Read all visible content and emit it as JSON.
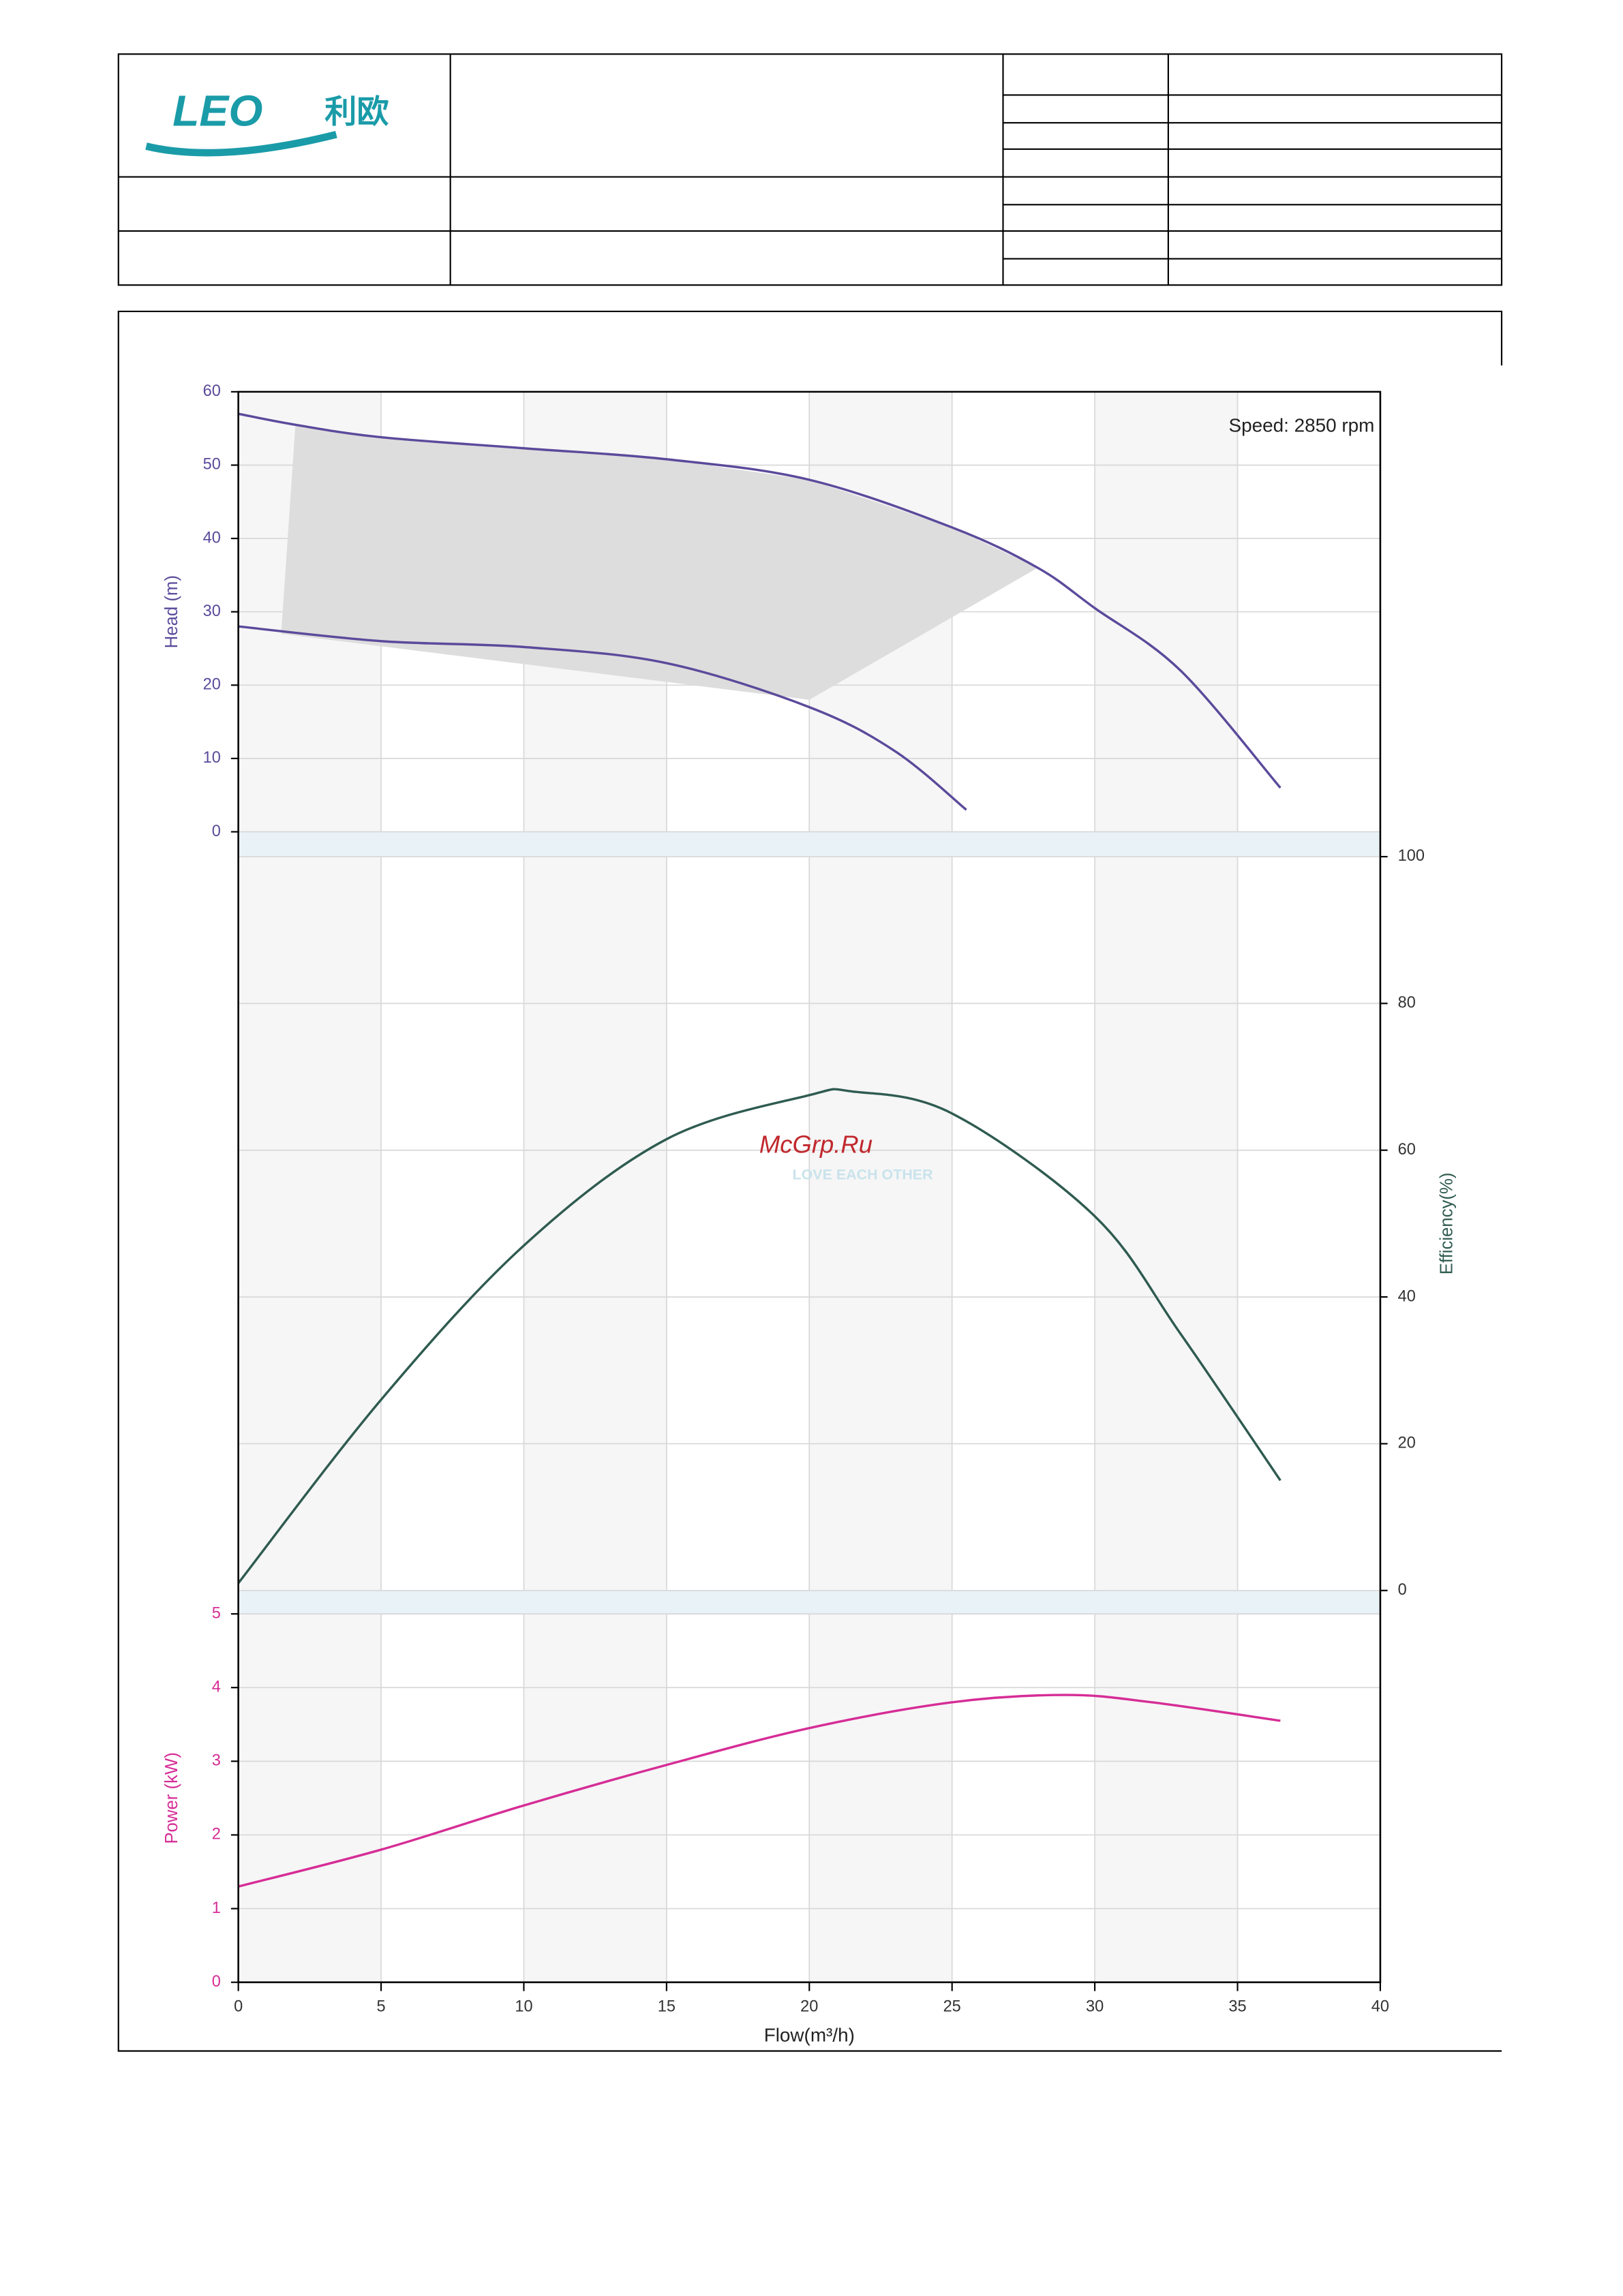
{
  "header": {
    "logo_en": "LEO",
    "logo_cn": "利欧"
  },
  "watermark": {
    "text": "McGrp.Ru",
    "slogan": "LOVE EACH OTHER"
  },
  "chart_data": [
    {
      "type": "line",
      "ylabel": "Head (m)",
      "annotation": "Speed: 2850 rpm",
      "xlim": [
        0,
        40
      ],
      "ylim": [
        0,
        60
      ],
      "yticks": [
        0,
        10,
        20,
        30,
        40,
        50,
        60
      ],
      "grid": true,
      "color": "#5b4a9b",
      "series": [
        {
          "color": "#5b4a9b",
          "x": [
            0,
            2,
            5,
            10,
            15,
            20,
            25,
            28,
            30,
            33,
            36.5
          ],
          "values": [
            57,
            55.5,
            53.8,
            52.3,
            50.8,
            48,
            41.5,
            36,
            30.5,
            22,
            6
          ]
        },
        {
          "color": "#5b4a9b",
          "x": [
            0,
            5,
            10,
            15,
            20,
            23,
            25.5
          ],
          "values": [
            28,
            26,
            25.2,
            23,
            17,
            11,
            3
          ]
        }
      ],
      "region": {
        "color": "#dddddd",
        "x": [
          1.5,
          2,
          5,
          10,
          15,
          20,
          25,
          28,
          24,
          20
        ],
        "y": [
          27,
          55.5,
          53.8,
          52.3,
          50.8,
          48,
          41.5,
          36,
          27,
          18
        ]
      }
    },
    {
      "type": "line",
      "ylabel": "Efficiency(%)",
      "axis_side": "right",
      "xlim": [
        0,
        40
      ],
      "ylim": [
        0,
        100
      ],
      "yticks": [
        0,
        20,
        40,
        60,
        80,
        100
      ],
      "grid": true,
      "color": "#2f5b50",
      "series": [
        {
          "color": "#2f5b50",
          "x": [
            0,
            5,
            10,
            15,
            20,
            21.5,
            25,
            30,
            33,
            36.5
          ],
          "values": [
            1,
            26,
            47,
            61.5,
            67.5,
            68,
            65,
            51,
            35,
            15
          ]
        }
      ]
    },
    {
      "type": "line",
      "ylabel": "Power (kW)",
      "xlabel": "Flow(m³/h)",
      "xlim": [
        0,
        40
      ],
      "xticks": [
        0,
        5,
        10,
        15,
        20,
        25,
        30,
        35,
        40
      ],
      "ylim": [
        0,
        5
      ],
      "yticks": [
        0,
        1,
        2,
        3,
        4,
        5
      ],
      "grid": true,
      "color": "#d62d96",
      "series": [
        {
          "color": "#d62d96",
          "x": [
            0,
            5,
            10,
            15,
            20,
            25,
            29,
            32,
            36.5
          ],
          "values": [
            1.3,
            1.8,
            2.4,
            2.95,
            3.45,
            3.8,
            3.9,
            3.8,
            3.55
          ]
        }
      ]
    }
  ]
}
